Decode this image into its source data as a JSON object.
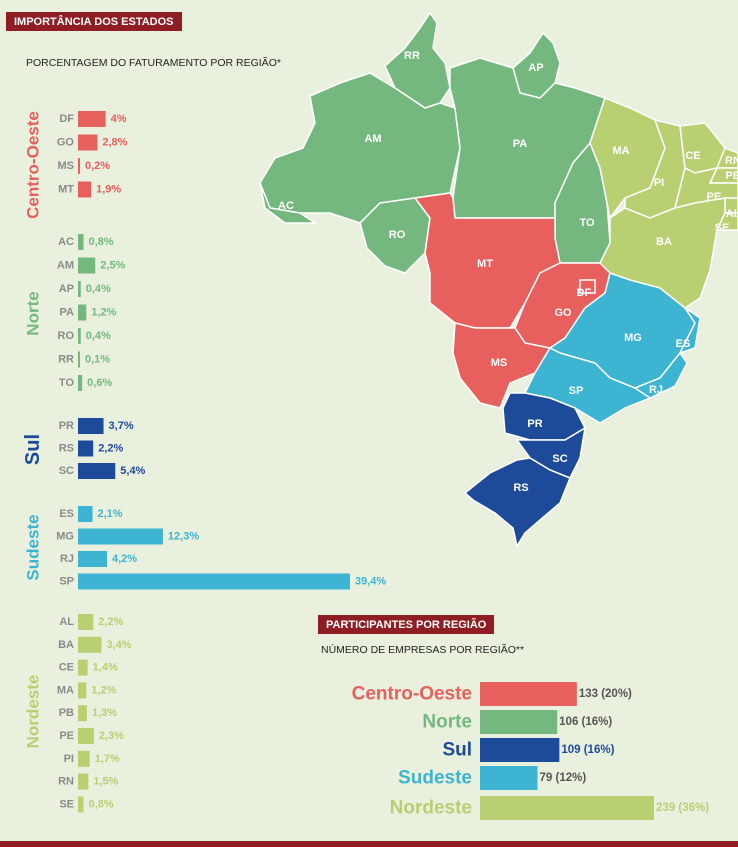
{
  "title": "IMPORTÂNCIA DOS ESTADOS",
  "subtitle": "PORCENTAGEM DO FATURAMENTO POR REGIÃO*",
  "second_title": "PARTICIPANTES POR REGIÃO",
  "second_subtitle": "NÚMERO DE EMPRESAS POR REGIÃO**",
  "colors": {
    "centro_oeste": "#e8605d",
    "norte": "#74b87f",
    "sul": "#1e4a9a",
    "sudeste": "#3cb4d2",
    "nordeste": "#b8cf72"
  },
  "chart_data": [
    {
      "type": "bar",
      "orientation": "horizontal",
      "title": "PORCENTAGEM DO FATURAMENTO POR REGIÃO*",
      "unit": "%",
      "groups": [
        {
          "name": "Centro-Oeste",
          "color": "#e8605d",
          "categories": [
            "DF",
            "GO",
            "MS",
            "MT"
          ],
          "values": [
            4,
            2.8,
            0.2,
            1.9
          ],
          "labels": [
            "4%",
            "2,8%",
            "0,2%",
            "1,9%"
          ]
        },
        {
          "name": "Norte",
          "color": "#74b87f",
          "categories": [
            "AC",
            "AM",
            "AP",
            "PA",
            "RO",
            "RR",
            "TO"
          ],
          "values": [
            0.8,
            2.5,
            0.4,
            1.2,
            0.4,
            0.1,
            0.6
          ],
          "labels": [
            "0,8%",
            "2,5%",
            "0,4%",
            "1,2%",
            "0,4%",
            "0,1%",
            "0,6%"
          ]
        },
        {
          "name": "Sul",
          "color": "#1e4a9a",
          "categories": [
            "PR",
            "RS",
            "SC"
          ],
          "values": [
            3.7,
            2.2,
            5.4
          ],
          "labels": [
            "3,7%",
            "2,2%",
            "5,4%"
          ]
        },
        {
          "name": "Sudeste",
          "color": "#3cb4d2",
          "categories": [
            "ES",
            "MG",
            "RJ",
            "SP"
          ],
          "values": [
            2.1,
            12.3,
            4.2,
            39.4
          ],
          "labels": [
            "2,1%",
            "12,3%",
            "4,2%",
            "39,4%"
          ]
        },
        {
          "name": "Nordeste",
          "color": "#b8cf72",
          "categories": [
            "AL",
            "BA",
            "CE",
            "MA",
            "PB",
            "PE",
            "PI",
            "RN",
            "SE"
          ],
          "values": [
            2.2,
            3.4,
            1.4,
            1.2,
            1.3,
            2.3,
            1.7,
            1.5,
            0.8
          ],
          "labels": [
            "2,2%",
            "3,4%",
            "1,4%",
            "1,2%",
            "1,3%",
            "2,3%",
            "1,7%",
            "1,5%",
            "0,8%"
          ]
        }
      ]
    },
    {
      "type": "bar",
      "orientation": "horizontal",
      "title": "NÚMERO DE EMPRESAS POR REGIÃO**",
      "categories": [
        "Centro-Oeste",
        "Norte",
        "Sul",
        "Sudeste",
        "Nordeste"
      ],
      "values": [
        133,
        106,
        109,
        79,
        239
      ],
      "labels": [
        "133 (20%)",
        "106 (16%)",
        "109 (16%)",
        "79 (12%)",
        "239 (36%)"
      ],
      "colors": [
        "#e8605d",
        "#74b87f",
        "#1e4a9a",
        "#3cb4d2",
        "#b8cf72"
      ]
    }
  ],
  "map": {
    "region_colors": {
      "CO": "#e8605d",
      "N": "#74b87f",
      "S": "#1e4a9a",
      "SE": "#3cb4d2",
      "NE": "#b8cf72"
    },
    "state_labels": [
      "RR",
      "AP",
      "AM",
      "PA",
      "AC",
      "RO",
      "MA",
      "CE",
      "PI",
      "RN",
      "PB",
      "PE",
      "AL",
      "SE",
      "BA",
      "TO",
      "MT",
      "DF",
      "GO",
      "MG",
      "ES",
      "MS",
      "SP",
      "RJ",
      "PR",
      "SC",
      "RS"
    ]
  }
}
